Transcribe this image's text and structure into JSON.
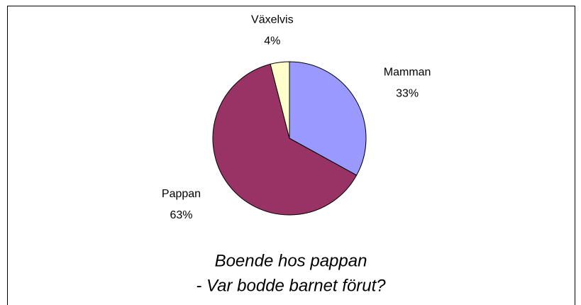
{
  "chart_data": {
    "type": "pie",
    "title": [
      "Boende hos pappan",
      "- Var bodde barnet förut?"
    ],
    "categories": [
      "Mamman",
      "Pappan",
      "Växelvis"
    ],
    "values": [
      33,
      63,
      4
    ],
    "value_labels": [
      "33%",
      "63%",
      "4%"
    ],
    "colors": [
      "#9999ff",
      "#993366",
      "#ffffcc"
    ]
  }
}
